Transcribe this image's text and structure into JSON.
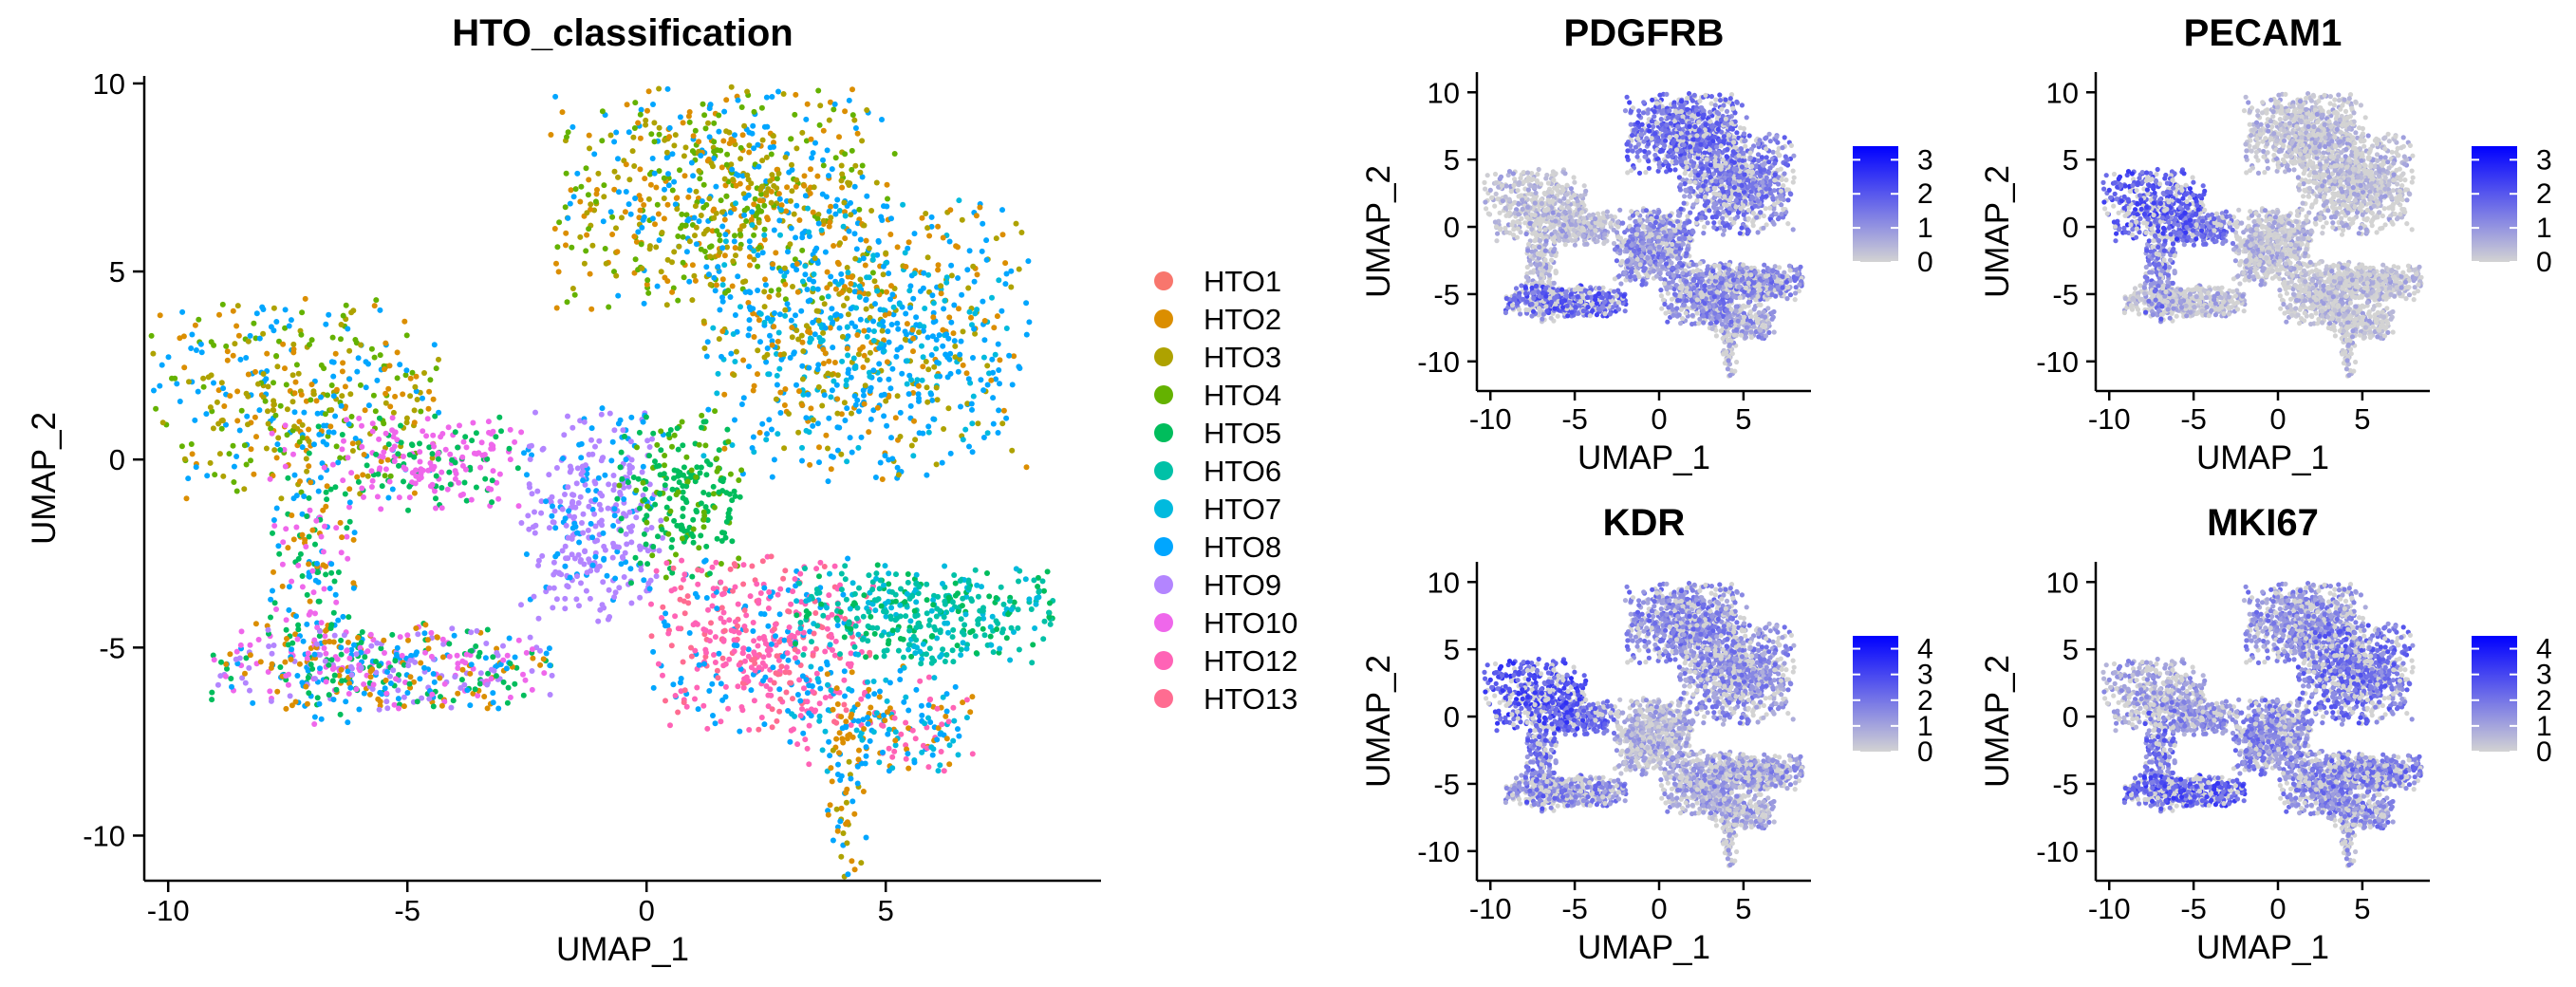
{
  "chart_data": [
    {
      "type": "scatter",
      "title": "HTO_classification",
      "xlabel": "UMAP_1",
      "ylabel": "UMAP_2",
      "xlim": [
        -10.5,
        9.5
      ],
      "ylim": [
        -11.2,
        10.2
      ],
      "xticks": [
        -10,
        -5,
        0,
        5
      ],
      "yticks": [
        -10,
        -5,
        0,
        5,
        10
      ],
      "legend_position": "right",
      "legend": [
        {
          "label": "HTO1",
          "color": "#F8766D"
        },
        {
          "label": "HTO2",
          "color": "#DB8E00"
        },
        {
          "label": "HTO3",
          "color": "#AEA200"
        },
        {
          "label": "HTO4",
          "color": "#64B200"
        },
        {
          "label": "HTO5",
          "color": "#00BD5C"
        },
        {
          "label": "HTO6",
          "color": "#00C1A7"
        },
        {
          "label": "HTO7",
          "color": "#00BADE"
        },
        {
          "label": "HTO8",
          "color": "#00A6FF"
        },
        {
          "label": "HTO9",
          "color": "#B385FF"
        },
        {
          "label": "HTO10",
          "color": "#EF67EB"
        },
        {
          "label": "HTO12",
          "color": "#FF63B6"
        },
        {
          "label": "HTO13",
          "color": "#FF6C91"
        }
      ],
      "clusters": [
        {
          "name": "top-right-upper",
          "cx": 1.6,
          "cy": 6.9,
          "rx": 2.0,
          "ry": 1.7,
          "n": 700,
          "colors": [
            "#AEA200",
            "#DB8E00",
            "#64B200",
            "#00A6FF"
          ]
        },
        {
          "name": "top-right-lower",
          "cx": 4.6,
          "cy": 3.2,
          "rx": 1.9,
          "ry": 2.1,
          "n": 800,
          "colors": [
            "#00A6FF",
            "#00A6FF",
            "#00BADE",
            "#AEA200",
            "#DB8E00"
          ]
        },
        {
          "name": "left-top",
          "cx": -7.3,
          "cy": 1.6,
          "rx": 1.7,
          "ry": 1.5,
          "n": 400,
          "colors": [
            "#AEA200",
            "#DB8E00",
            "#00A6FF",
            "#64B200"
          ]
        },
        {
          "name": "left-pink",
          "cx": -4.6,
          "cy": -0.1,
          "rx": 1.1,
          "ry": 0.7,
          "n": 200,
          "colors": [
            "#EF67EB",
            "#EF67EB",
            "#00BD5C"
          ]
        },
        {
          "name": "left-stem",
          "cx": -7.0,
          "cy": -3.0,
          "rx": 0.5,
          "ry": 2.3,
          "n": 200,
          "colors": [
            "#EF67EB",
            "#00A6FF",
            "#DB8E00",
            "#00BD5C"
          ]
        },
        {
          "name": "left-bottom",
          "cx": -5.5,
          "cy": -5.5,
          "rx": 2.0,
          "ry": 0.65,
          "n": 450,
          "colors": [
            "#EF67EB",
            "#B385FF",
            "#00A6FF",
            "#00BD5C",
            "#DB8E00"
          ]
        },
        {
          "name": "center-lavender",
          "cx": -1.1,
          "cy": -1.5,
          "rx": 0.85,
          "ry": 1.6,
          "n": 350,
          "colors": [
            "#B385FF",
            "#B385FF",
            "#B385FF",
            "#00A6FF"
          ]
        },
        {
          "name": "center-green",
          "cx": 0.7,
          "cy": -1.0,
          "rx": 0.75,
          "ry": 1.3,
          "n": 220,
          "colors": [
            "#00BD5C",
            "#00BD5C",
            "#64B200"
          ]
        },
        {
          "name": "pink-bottom",
          "cx": 2.4,
          "cy": -4.9,
          "rx": 1.3,
          "ry": 1.3,
          "n": 450,
          "colors": [
            "#FF63B6",
            "#FF63B6",
            "#FF6C91",
            "#00A6FF"
          ]
        },
        {
          "name": "teal-right",
          "cx": 5.8,
          "cy": -4.1,
          "rx": 1.5,
          "ry": 0.75,
          "n": 380,
          "colors": [
            "#00C1A7",
            "#00C1A7",
            "#00BD5C",
            "#00BADE"
          ]
        },
        {
          "name": "bottom-tail",
          "cx": 4.9,
          "cy": -6.9,
          "rx": 1.1,
          "ry": 0.8,
          "n": 200,
          "colors": [
            "#00A6FF",
            "#FF63B6",
            "#DB8E00",
            "#00BADE"
          ]
        },
        {
          "name": "bottom-spike",
          "cx": 4.2,
          "cy": -8.8,
          "rx": 0.25,
          "ry": 1.3,
          "n": 60,
          "colors": [
            "#00A6FF",
            "#AEA200",
            "#DB8E00"
          ]
        }
      ]
    },
    {
      "type": "scatter",
      "title": "PDGFRB",
      "xlabel": "UMAP_1",
      "ylabel": "UMAP_2",
      "xlim": [
        -10.8,
        9.0
      ],
      "ylim": [
        -12.2,
        11.5
      ],
      "xticks": [
        -10,
        -5,
        0,
        5
      ],
      "yticks": [
        -10,
        -5,
        0,
        5,
        10
      ],
      "colorbar": {
        "ticks": [
          0,
          1,
          2,
          3
        ],
        "max": 3.4,
        "low_color": "#D3D3D3",
        "high_color": "#0000FF"
      },
      "expression": {
        "top-right-upper": 0.5,
        "top-right-lower": 0.4,
        "left-top": 0.05,
        "left-pink": 0.1,
        "left-stem": 0.1,
        "left-bottom": 0.55,
        "center-lavender": 0.3,
        "center-green": 0.35,
        "pink-bottom": 0.35,
        "teal-right": 0.35,
        "bottom-tail": 0.25,
        "bottom-spike": 0.1
      }
    },
    {
      "type": "scatter",
      "title": "PECAM1",
      "xlabel": "UMAP_1",
      "ylabel": "UMAP_2",
      "xlim": [
        -10.8,
        9.0
      ],
      "ylim": [
        -12.2,
        11.5
      ],
      "xticks": [
        -10,
        -5,
        0,
        5
      ],
      "yticks": [
        -10,
        -5,
        0,
        5,
        10
      ],
      "colorbar": {
        "ticks": [
          0,
          1,
          2,
          3
        ],
        "max": 3.4,
        "low_color": "#D3D3D3",
        "high_color": "#0000FF"
      },
      "expression": {
        "top-right-upper": 0.03,
        "top-right-lower": 0.03,
        "left-top": 0.6,
        "left-pink": 0.45,
        "left-stem": 0.4,
        "left-bottom": 0.08,
        "center-lavender": 0.05,
        "center-green": 0.05,
        "pink-bottom": 0.03,
        "teal-right": 0.03,
        "bottom-tail": 0.03,
        "bottom-spike": 0.03
      }
    },
    {
      "type": "scatter",
      "title": "KDR",
      "xlabel": "UMAP_1",
      "ylabel": "UMAP_2",
      "xlim": [
        -10.8,
        9.0
      ],
      "ylim": [
        -12.2,
        11.5
      ],
      "xticks": [
        -10,
        -5,
        0,
        5
      ],
      "yticks": [
        -10,
        -5,
        0,
        5,
        10
      ],
      "colorbar": {
        "ticks": [
          0,
          1,
          2,
          3,
          4
        ],
        "max": 4.5,
        "low_color": "#D3D3D3",
        "high_color": "#0000FF"
      },
      "expression": {
        "top-right-upper": 0.35,
        "top-right-lower": 0.3,
        "left-top": 0.65,
        "left-pink": 0.5,
        "left-stem": 0.45,
        "left-bottom": 0.35,
        "center-lavender": 0.1,
        "center-green": 0.15,
        "pink-bottom": 0.2,
        "teal-right": 0.25,
        "bottom-tail": 0.2,
        "bottom-spike": 0.1
      }
    },
    {
      "type": "scatter",
      "title": "MKI67",
      "xlabel": "UMAP_1",
      "ylabel": "UMAP_2",
      "xlim": [
        -10.8,
        9.0
      ],
      "ylim": [
        -12.2,
        11.5
      ],
      "xticks": [
        -10,
        -5,
        0,
        5
      ],
      "yticks": [
        -10,
        -5,
        0,
        5,
        10
      ],
      "colorbar": {
        "ticks": [
          0,
          1,
          2,
          3,
          4
        ],
        "max": 4.5,
        "low_color": "#D3D3D3",
        "high_color": "#0000FF"
      },
      "expression": {
        "top-right-upper": 0.3,
        "top-right-lower": 0.45,
        "left-top": 0.2,
        "left-pink": 0.3,
        "left-stem": 0.45,
        "left-bottom": 0.6,
        "center-lavender": 0.35,
        "center-green": 0.3,
        "pink-bottom": 0.35,
        "teal-right": 0.4,
        "bottom-tail": 0.35,
        "bottom-spike": 0.2
      }
    }
  ]
}
